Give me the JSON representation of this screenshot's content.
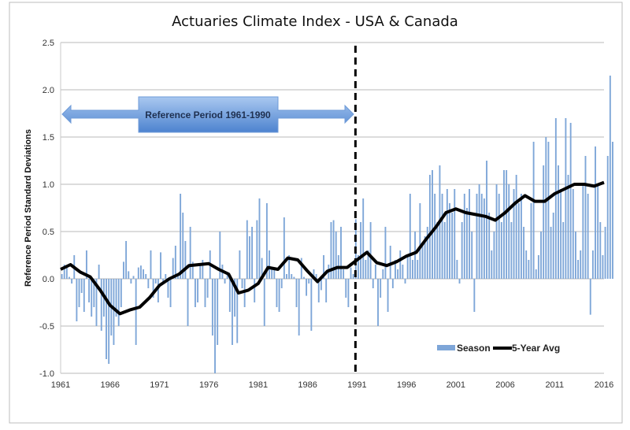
{
  "chart_data": {
    "type": "bar+line",
    "title": "Actuaries Climate Index - USA & Canada",
    "xlabel": "",
    "ylabel": "Reference Period Standard Deviations",
    "xlim": [
      1961,
      2016
    ],
    "ylim": [
      -1.0,
      2.5
    ],
    "x_ticks": [
      "1961",
      "1966",
      "1971",
      "1976",
      "1981",
      "1986",
      "1991",
      "1996",
      "2001",
      "2006",
      "2011",
      "2016"
    ],
    "y_ticks": [
      "-1.0",
      "-0.5",
      "0.0",
      "0.5",
      "1.0",
      "1.5",
      "2.0",
      "2.5"
    ],
    "grid": "horizontal",
    "legend_position": "bottom-right",
    "colors": {
      "season": "#7ea6d8",
      "avg": "#000000",
      "arrow": "#5b8fd6"
    },
    "annotations": {
      "reference_period": "Reference Period 1961-1990",
      "divider_year": 1991
    },
    "series": [
      {
        "name": "Season",
        "type": "bar",
        "start_year": 1961,
        "per_year": 4,
        "values": [
          0.05,
          0.15,
          0.12,
          0.02,
          -0.05,
          0.25,
          -0.45,
          -0.3,
          -0.15,
          -0.35,
          0.3,
          -0.25,
          -0.4,
          -0.3,
          -0.5,
          0.15,
          -0.55,
          -0.4,
          -0.85,
          -0.9,
          -0.6,
          -0.7,
          -0.4,
          -0.5,
          -0.3,
          0.18,
          0.4,
          0.08,
          -0.05,
          0.03,
          -0.7,
          0.12,
          0.14,
          0.1,
          0.05,
          -0.1,
          0.3,
          -0.2,
          -0.05,
          -0.25,
          0.28,
          -0.03,
          0.05,
          -0.2,
          -0.3,
          0.22,
          0.35,
          0.05,
          0.9,
          0.7,
          0.4,
          -0.5,
          0.55,
          0.18,
          -0.3,
          -0.25,
          0.15,
          0.2,
          -0.3,
          -0.2,
          0.3,
          -0.6,
          -1.0,
          -0.7,
          0.5,
          0.15,
          -0.05,
          0.05,
          -0.35,
          -0.7,
          -0.4,
          -0.68,
          0.3,
          -0.1,
          -0.3,
          0.62,
          0.45,
          0.55,
          -0.25,
          0.62,
          0.85,
          0.22,
          -0.5,
          0.8,
          0.3,
          0.1,
          0.12,
          -0.3,
          -0.35,
          -0.1,
          0.65,
          0.05,
          0.25,
          0.05,
          0.02,
          -0.3,
          -0.6,
          0.22,
          0.02,
          -0.18,
          -0.05,
          -0.55,
          0.1,
          0.05,
          -0.25,
          -0.12,
          0.25,
          -0.25,
          0.15,
          0.6,
          0.62,
          0.5,
          0.25,
          0.55,
          0.1,
          -0.2,
          -0.3,
          0.12,
          0.05,
          0.63,
          0.25,
          0.6,
          0.85,
          0.2,
          0.3,
          0.6,
          -0.1,
          0.15,
          -0.5,
          -0.2,
          0.1,
          0.55,
          -0.35,
          0.35,
          -0.1,
          0.2,
          0.1,
          0.3,
          0.15,
          -0.05,
          0.25,
          0.9,
          0.2,
          0.5,
          0.2,
          0.8,
          0.35,
          0.45,
          0.55,
          1.1,
          1.15,
          0.9,
          0.6,
          1.2,
          0.9,
          0.6,
          0.95,
          0.8,
          0.7,
          0.95,
          0.2,
          -0.05,
          0.6,
          0.9,
          0.75,
          0.95,
          0.5,
          -0.35,
          0.9,
          1.0,
          0.9,
          0.85,
          1.25,
          0.7,
          0.3,
          0.5,
          1.0,
          0.9,
          0.6,
          1.15,
          1.15,
          1.0,
          0.6,
          0.95,
          1.1,
          0.8,
          0.9,
          0.55,
          0.3,
          0.2,
          0.8,
          1.45,
          0.1,
          0.25,
          0.5,
          1.2,
          1.5,
          1.45,
          0.55,
          0.7,
          1.7,
          1.2,
          0.95,
          0.6,
          1.7,
          1.1,
          1.65,
          0.95,
          0.5,
          0.2,
          0.3,
          1.0,
          1.3,
          0.9,
          -0.38,
          0.3,
          1.4,
          1.0,
          0.6,
          0.25,
          0.55,
          1.3,
          2.15,
          1.45
        ]
      },
      {
        "name": "5-Year Avg",
        "type": "line",
        "x": [
          1961,
          1962,
          1963,
          1964,
          1965,
          1966,
          1967,
          1968,
          1969,
          1970,
          1971,
          1972,
          1973,
          1974,
          1975,
          1976,
          1977,
          1978,
          1979,
          1980,
          1981,
          1982,
          1983,
          1984,
          1985,
          1986,
          1987,
          1988,
          1989,
          1990,
          1991,
          1992,
          1993,
          1994,
          1995,
          1996,
          1997,
          1998,
          1999,
          2000,
          2001,
          2002,
          2003,
          2004,
          2005,
          2006,
          2007,
          2008,
          2009,
          2010,
          2011,
          2012,
          2013,
          2014,
          2015,
          2016
        ],
        "values": [
          0.1,
          0.15,
          0.07,
          0.02,
          -0.12,
          -0.28,
          -0.37,
          -0.33,
          -0.3,
          -0.2,
          -0.07,
          0.0,
          0.05,
          0.14,
          0.15,
          0.16,
          0.1,
          0.05,
          -0.15,
          -0.12,
          -0.05,
          0.12,
          0.1,
          0.22,
          0.2,
          0.08,
          -0.03,
          0.08,
          0.12,
          0.12,
          0.2,
          0.28,
          0.17,
          0.14,
          0.18,
          0.24,
          0.28,
          0.42,
          0.55,
          0.7,
          0.74,
          0.7,
          0.68,
          0.66,
          0.62,
          0.7,
          0.8,
          0.88,
          0.82,
          0.82,
          0.9,
          0.95,
          1.0,
          1.0,
          0.98,
          1.02
        ]
      }
    ]
  }
}
